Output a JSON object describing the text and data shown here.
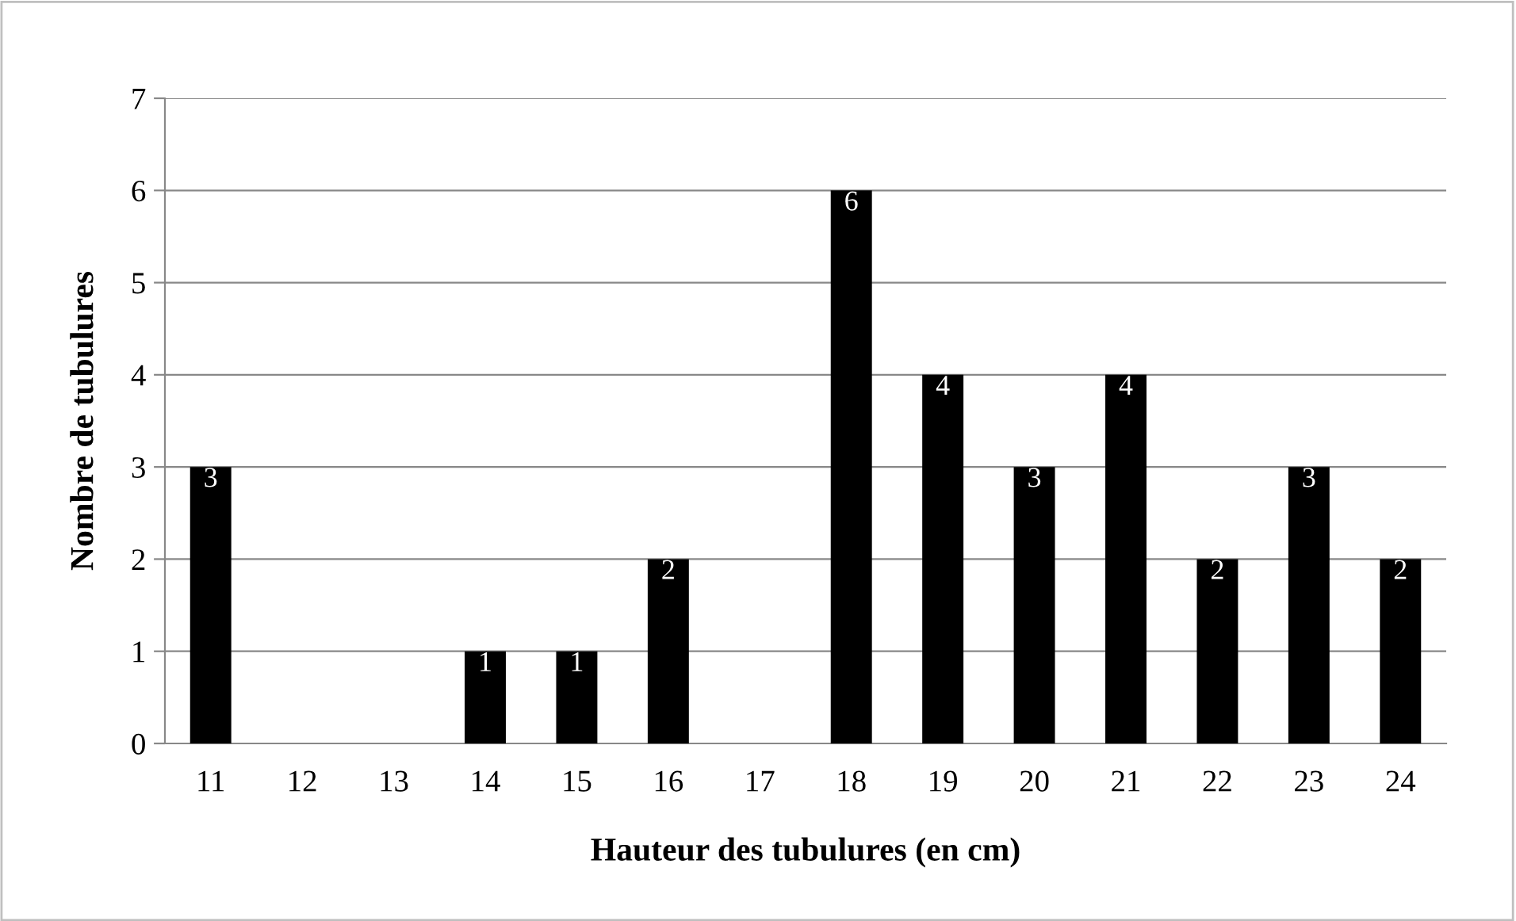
{
  "chart_data": {
    "type": "bar",
    "xlabel": "Hauteur des tubulures (en cm)",
    "ylabel": "Nombre de tubulures",
    "categories": [
      "11",
      "12",
      "13",
      "14",
      "15",
      "16",
      "17",
      "18",
      "19",
      "20",
      "21",
      "22",
      "23",
      "24"
    ],
    "values": [
      3,
      0,
      0,
      1,
      1,
      2,
      0,
      6,
      4,
      3,
      4,
      2,
      3,
      2
    ],
    "value_labels": [
      "3",
      null,
      null,
      "1",
      "1",
      "2",
      null,
      "6",
      "4",
      "3",
      "4",
      "2",
      "3",
      "2"
    ],
    "color": "#000000",
    "ylim": [
      0,
      7
    ],
    "yticks": [
      0,
      1,
      2,
      3,
      4,
      5,
      6,
      7
    ],
    "grid": "y",
    "legend": false
  }
}
